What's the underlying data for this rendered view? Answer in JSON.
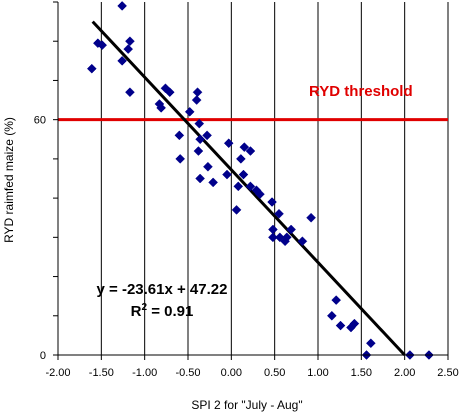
{
  "chart_data": {
    "type": "scatter",
    "title": "",
    "xlabel": "SPI 2 for \"July - Aug\"",
    "ylabel": "RYD raimfed maize (%)",
    "xlim": [
      -2.0,
      2.5
    ],
    "ylim": [
      0,
      90
    ],
    "x_ticks": [
      -2.0,
      -1.5,
      -1.0,
      -0.5,
      0.0,
      0.5,
      1.0,
      1.5,
      2.0,
      2.5
    ],
    "x_tick_labels": [
      "-2.00",
      "-1.50",
      "-1.00",
      "-0.50",
      "0.00",
      "0.50",
      "1.00",
      "1.50",
      "2.00",
      "2.50"
    ],
    "y_ticks": [
      0,
      60
    ],
    "y_tick_labels": [
      "0",
      "60"
    ],
    "grid": "vertical lines",
    "marker_color": "#00008b",
    "series": [
      {
        "points": [
          [
            -1.26,
            89
          ],
          [
            -1.17,
            80
          ],
          [
            -1.19,
            78
          ],
          [
            -1.49,
            79
          ],
          [
            -1.54,
            79.5
          ],
          [
            -1.26,
            75
          ],
          [
            -1.61,
            73
          ],
          [
            -1.17,
            67
          ],
          [
            -0.76,
            68
          ],
          [
            -0.71,
            67
          ],
          [
            -0.83,
            64
          ],
          [
            -0.81,
            63
          ],
          [
            -0.39,
            67
          ],
          [
            -0.4,
            65
          ],
          [
            -0.48,
            62
          ],
          [
            -0.37,
            59
          ],
          [
            -0.6,
            56
          ],
          [
            -0.36,
            55
          ],
          [
            -0.28,
            56
          ],
          [
            -0.59,
            50
          ],
          [
            -0.38,
            52
          ],
          [
            -0.27,
            48
          ],
          [
            -0.36,
            45
          ],
          [
            -0.21,
            44
          ],
          [
            -0.03,
            54
          ],
          [
            0.15,
            53
          ],
          [
            0.22,
            52
          ],
          [
            0.11,
            50
          ],
          [
            0.14,
            46
          ],
          [
            0.22,
            43
          ],
          [
            0.29,
            42
          ],
          [
            -0.05,
            46
          ],
          [
            0.08,
            43
          ],
          [
            0.33,
            41
          ],
          [
            0.06,
            37
          ],
          [
            0.47,
            39
          ],
          [
            0.55,
            36
          ],
          [
            0.56,
            30
          ],
          [
            0.62,
            29
          ],
          [
            0.82,
            29
          ],
          [
            0.69,
            32
          ],
          [
            0.48,
            32
          ],
          [
            0.48,
            30
          ],
          [
            0.92,
            35
          ],
          [
            0.64,
            30
          ],
          [
            1.21,
            14
          ],
          [
            1.16,
            10
          ],
          [
            1.26,
            7.5
          ],
          [
            1.38,
            7
          ],
          [
            1.42,
            8
          ],
          [
            1.56,
            0
          ],
          [
            1.61,
            3
          ],
          [
            2.06,
            0
          ],
          [
            2.28,
            0
          ]
        ]
      }
    ],
    "regression": {
      "slope": -23.61,
      "intercept": 47.22,
      "x_range": [
        -1.6,
        2.0
      ],
      "color": "#000000"
    },
    "threshold": {
      "value": 60,
      "label": "RYD threshold",
      "color": "#e00000"
    },
    "annotations": {
      "equation": "y = -23.61x + 47.22",
      "r2_prefix": "R",
      "r2_sup": "2",
      "r2_suffix": " = 0.91"
    }
  }
}
